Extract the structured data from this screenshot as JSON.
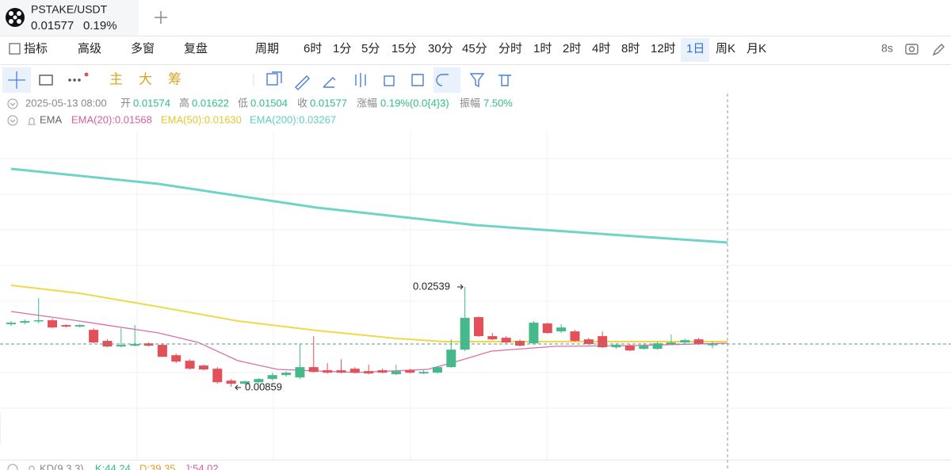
{
  "header": {
    "symbol": "PSTAKE/USDT",
    "price": "0.01577",
    "change": "0.19%"
  },
  "toolbar": {
    "items": [
      "指标",
      "高级",
      "多窗",
      "复盘",
      "周期",
      "6时",
      "1分",
      "5分",
      "15分",
      "30分",
      "45分",
      "分时",
      "1时",
      "2时",
      "4时",
      "8时",
      "12时",
      "1日",
      "周K",
      "月K"
    ],
    "timer": "8s"
  },
  "tools": {
    "labels": [
      "主",
      "大",
      "筹"
    ]
  },
  "info": {
    "date": "2025-05-13 08:00",
    "fields": [
      {
        "label": "开",
        "value": "0.01574"
      },
      {
        "label": "高",
        "value": "0.01622"
      },
      {
        "label": "低",
        "value": "0.01504"
      },
      {
        "label": "收",
        "value": "0.01577"
      },
      {
        "label": "涨幅",
        "value": "0.19%(0.0{4}3)"
      },
      {
        "label": "振幅",
        "value": "7.50%"
      }
    ]
  },
  "indicator": {
    "name": "EMA",
    "lines": [
      {
        "text": "EMA(20):0.01568",
        "color": "#d4609f"
      },
      {
        "text": "EMA(50):0.01630",
        "color": "#e3c62c"
      },
      {
        "text": "EMA(200):0.03267",
        "color": "#5fcdc3"
      }
    ]
  },
  "kd": {
    "items": [
      {
        "text": "KD(9,3,3)",
        "color": "#888888"
      },
      {
        "text": "K:44.24",
        "color": "#2ebd85"
      },
      {
        "text": "D:39.35",
        "color": "#e3a02c"
      },
      {
        "text": "J:54.02",
        "color": "#d4609f"
      }
    ]
  },
  "chart_data": {
    "type": "candlestick",
    "up_color": "#46b98c",
    "down_color": "#e2505a",
    "max": 0.02539,
    "min": 0.00859,
    "open": [
      0.01911,
      0.01937,
      0.01964,
      0.01978,
      0.01897,
      0.01871,
      0.01817,
      0.01631,
      0.01537,
      0.0155,
      0.0159,
      0.01564,
      0.0139,
      0.01297,
      0.01217,
      0.01163,
      0.00963,
      0.0091,
      0.00936,
      0.0099,
      0.01056,
      0.01016,
      0.0119,
      0.01137,
      0.01137,
      0.01163,
      0.01123,
      0.01137,
      0.0107,
      0.01137,
      0.01083,
      0.01096,
      0.0119,
      0.01484,
      0.02031,
      0.01711,
      0.01684,
      0.01631,
      0.0159,
      0.01924,
      0.01791,
      0.01791,
      0.01657,
      0.01711,
      0.01524,
      0.0155,
      0.01497,
      0.01497,
      0.01577,
      0.01604,
      0.01657,
      0.01574
    ],
    "high": [
      0.01964,
      0.01991,
      0.02351,
      0.02004,
      0.01911,
      0.01911,
      0.01844,
      0.01657,
      0.01844,
      0.01897,
      0.01604,
      0.0159,
      0.01417,
      0.01323,
      0.0123,
      0.0119,
      0.0099,
      0.00963,
      0.01003,
      0.01096,
      0.01123,
      0.01577,
      0.01711,
      0.01257,
      0.01323,
      0.0119,
      0.0123,
      0.01163,
      0.0123,
      0.01163,
      0.01137,
      0.01203,
      0.01657,
      0.02539,
      0.02044,
      0.01764,
      0.01711,
      0.01657,
      0.01964,
      0.01937,
      0.01911,
      0.01817,
      0.01684,
      0.01791,
      0.0159,
      0.01577,
      0.0159,
      0.01617,
      0.01737,
      0.0167,
      0.01684,
      0.01622
    ],
    "low": [
      0.01884,
      0.01911,
      0.01924,
      0.01844,
      0.01857,
      0.01857,
      0.0159,
      0.01524,
      0.01524,
      0.01537,
      0.01537,
      0.01363,
      0.01257,
      0.0115,
      0.01137,
      0.0091,
      0.00859,
      0.00896,
      0.0091,
      0.00963,
      0.0103,
      0.0099,
      0.01096,
      0.01083,
      0.01083,
      0.01083,
      0.0107,
      0.01083,
      0.01056,
      0.01083,
      0.0107,
      0.01083,
      0.01177,
      0.01457,
      0.01697,
      0.01644,
      0.0159,
      0.01537,
      0.01577,
      0.01751,
      0.01764,
      0.01617,
      0.01564,
      0.0151,
      0.01497,
      0.01457,
      0.01484,
      0.01484,
      0.01564,
      0.01577,
      0.01564,
      0.01504
    ],
    "close": [
      0.01937,
      0.01964,
      0.01978,
      0.01857,
      0.01871,
      0.01897,
      0.01604,
      0.01537,
      0.01564,
      0.01577,
      0.0155,
      0.01363,
      0.01283,
      0.01163,
      0.0115,
      0.00936,
      0.0091,
      0.0095,
      0.0099,
      0.01056,
      0.01096,
      0.0119,
      0.0111,
      0.01096,
      0.01096,
      0.01096,
      0.01083,
      0.01096,
      0.01123,
      0.01096,
      0.0111,
      0.0119,
      0.01484,
      0.02018,
      0.01711,
      0.01657,
      0.01604,
      0.0155,
      0.01937,
      0.01764,
      0.01857,
      0.01631,
      0.01577,
      0.01524,
      0.01564,
      0.0147,
      0.0155,
      0.0159,
      0.01604,
      0.01644,
      0.01577,
      0.01577
    ]
  }
}
